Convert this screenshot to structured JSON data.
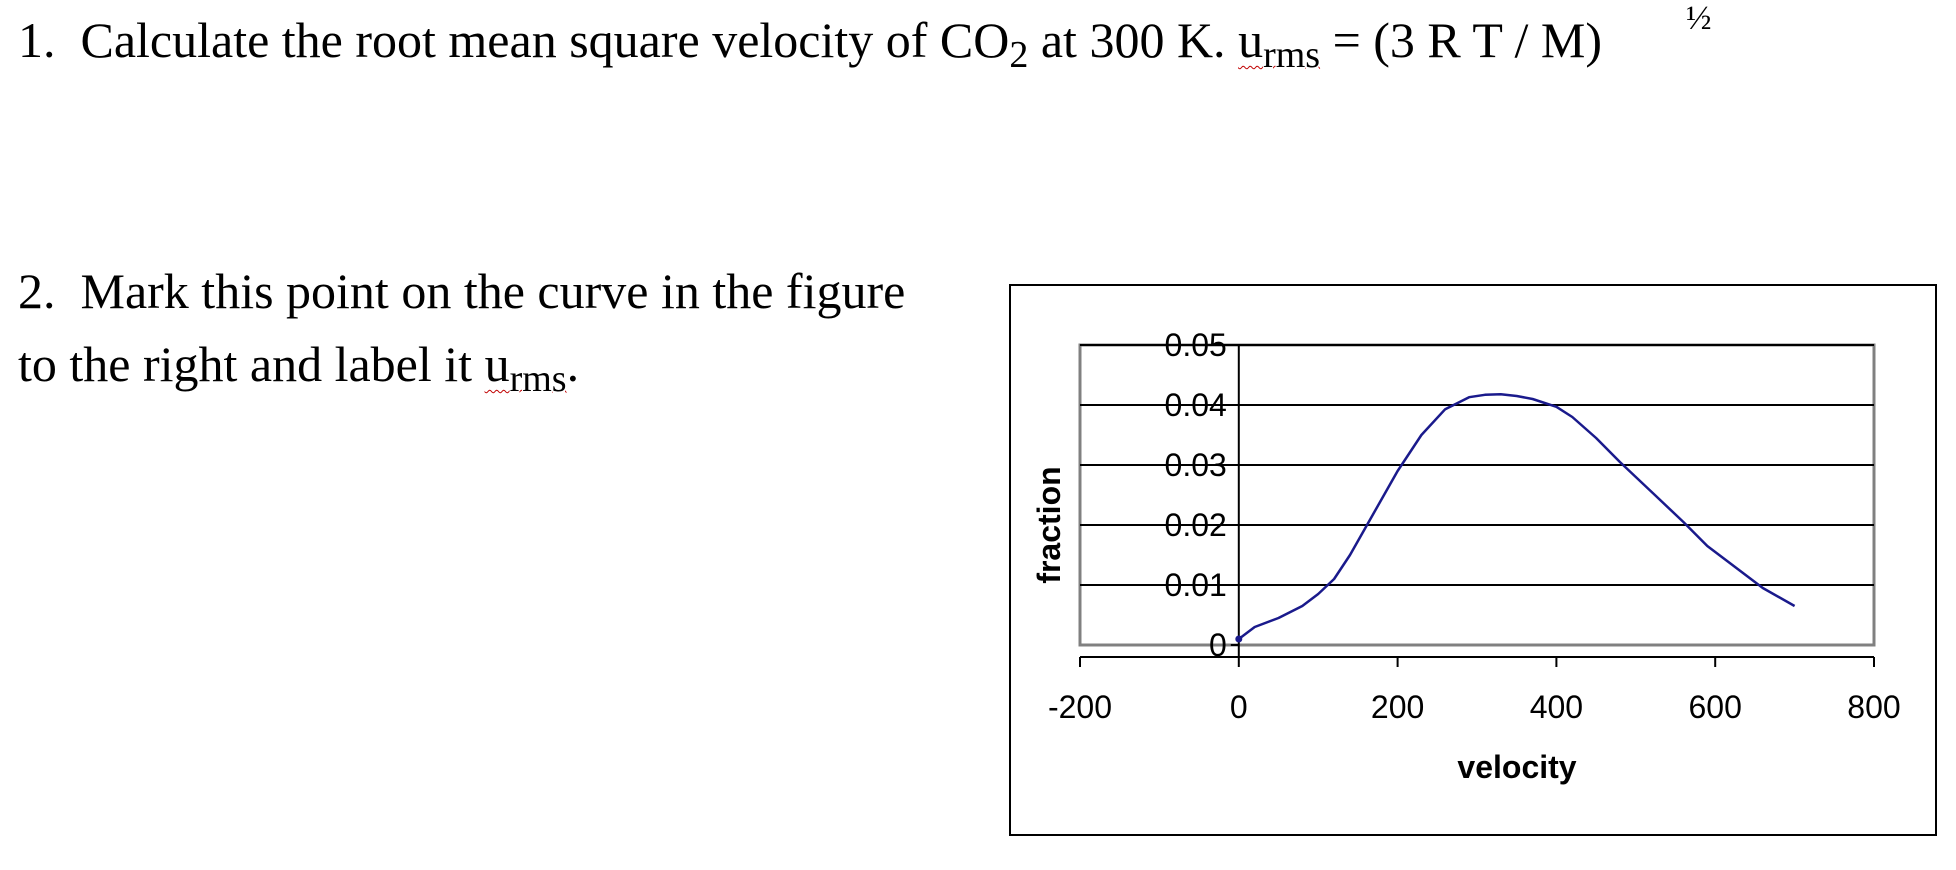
{
  "question1": {
    "number": "1.",
    "text": "Calculate the root mean square velocity of CO",
    "subscript": "2",
    "text_after": " at 300 K.  ",
    "urms_u": "u",
    "urms_sub": "rms",
    "formula": " = (3 R T / M)",
    "exponent": "½"
  },
  "question2": {
    "number": "2.",
    "line1": "Mark this point on the curve in the figure",
    "line2": "to the right and label it ",
    "urms_u": "u",
    "urms_sub": "rms",
    "period": "."
  },
  "colors": {
    "curve": "#1a1a8c",
    "plot_border": "#808080",
    "gridline": "#000000",
    "spellcheck_underline": "#c00000"
  },
  "chart_data": {
    "type": "line",
    "xlabel": "velocity",
    "ylabel": "fraction",
    "xlim": [
      -200,
      800
    ],
    "ylim": [
      0,
      0.05
    ],
    "x_ticks": [
      "-200",
      "0",
      "200",
      "400",
      "600",
      "800"
    ],
    "y_ticks": [
      "0",
      "0.01",
      "0.02",
      "0.03",
      "0.04",
      "0.05"
    ],
    "grid": "horizontal",
    "legend": "none",
    "series": [
      {
        "x": [
          0,
          20,
          50,
          80,
          100,
          120,
          140,
          170,
          200,
          230,
          260,
          290,
          310,
          330,
          350,
          370,
          400,
          420,
          450,
          480,
          520,
          560,
          590,
          620,
          660,
          700
        ],
        "y": [
          0.001,
          0.003,
          0.0045,
          0.0065,
          0.0085,
          0.011,
          0.015,
          0.022,
          0.029,
          0.035,
          0.0393,
          0.0413,
          0.0417,
          0.0418,
          0.0415,
          0.041,
          0.0397,
          0.038,
          0.0345,
          0.0305,
          0.0255,
          0.0205,
          0.0165,
          0.0135,
          0.0095,
          0.0065
        ]
      }
    ]
  }
}
